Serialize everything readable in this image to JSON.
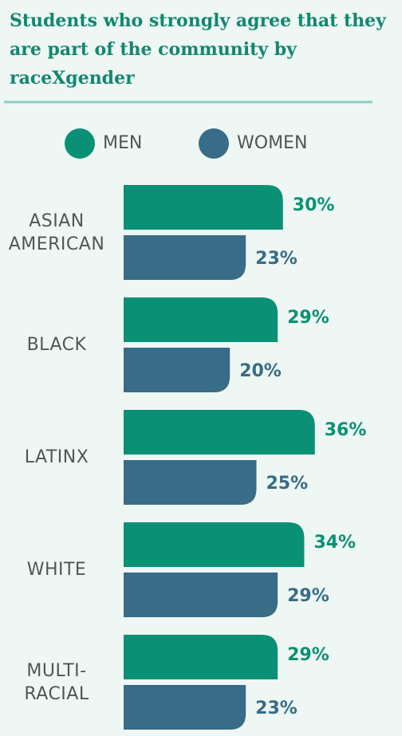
{
  "chart_data": {
    "type": "bar",
    "orientation": "horizontal",
    "title": "Students who strongly agree that they are part of the community by raceXgender",
    "categories": [
      "ASIAN AMERICAN",
      "BLACK",
      "LATINX",
      "WHITE",
      "MULTI-RACIAL"
    ],
    "series": [
      {
        "name": "MEN",
        "color": "#0a9175",
        "values": [
          30,
          29,
          36,
          34,
          29
        ],
        "value_labels": [
          "30%",
          "29%",
          "36%",
          "34%",
          "29%"
        ]
      },
      {
        "name": "WOMEN",
        "color": "#386c87",
        "values": [
          23,
          20,
          25,
          29,
          23
        ],
        "value_labels": [
          "23%",
          "20%",
          "25%",
          "29%",
          "23%"
        ]
      }
    ],
    "xlim": [
      0,
      50
    ]
  }
}
